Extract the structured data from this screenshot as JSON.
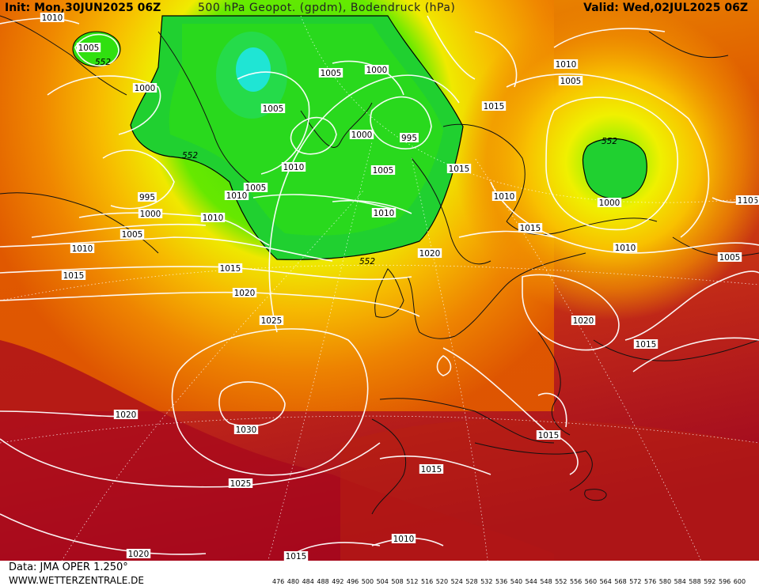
{
  "header": {
    "init": "Init: Mon,30JUN2025 06Z",
    "title": "500 hPa Geopot. (gpdm), Bodendruck (hPa)",
    "valid": "Valid: Wed,02JUL2025 06Z"
  },
  "footer": {
    "data_source": "Data: JMA OPER 1.250°",
    "website": "WWW.WETTERZENTRALE.DE"
  },
  "color_scale": {
    "values": [
      "476",
      "480",
      "484",
      "488",
      "492",
      "496",
      "500",
      "504",
      "508",
      "512",
      "516",
      "520",
      "524",
      "528",
      "532",
      "536",
      "540",
      "544",
      "548",
      "552",
      "556",
      "560",
      "564",
      "568",
      "572",
      "576",
      "580",
      "584",
      "588",
      "592",
      "596",
      "600"
    ],
    "colors": [
      "#3c0050",
      "#5a0a78",
      "#7a0aa0",
      "#9a10c0",
      "#c010e0",
      "#e020f0",
      "#a030f0",
      "#7040f0",
      "#4040f0",
      "#2060f0",
      "#2090f0",
      "#20b8f0",
      "#20e0f0",
      "#20e8c0",
      "#20e090",
      "#20d860",
      "#20d030",
      "#30e010",
      "#60f000",
      "#f0f000",
      "#f0e000",
      "#f8d000",
      "#f8b800",
      "#f0a000",
      "#f08800",
      "#e87000",
      "#e05800",
      "#d04000",
      "#c02800",
      "#b01818",
      "#a00820",
      "#c00060"
    ]
  },
  "pressure_labels": [
    {
      "text": "1010"
    },
    {
      "text": "1005"
    },
    {
      "text": "552"
    },
    {
      "text": "1000"
    },
    {
      "text": "552"
    },
    {
      "text": "995"
    },
    {
      "text": "1000"
    },
    {
      "text": "1005"
    },
    {
      "text": "1010"
    },
    {
      "text": "1015"
    },
    {
      "text": "1010"
    },
    {
      "text": "1005"
    },
    {
      "text": "1005"
    },
    {
      "text": "1000"
    },
    {
      "text": "1005"
    },
    {
      "text": "1010"
    },
    {
      "text": "1000"
    },
    {
      "text": "995"
    },
    {
      "text": "1005"
    },
    {
      "text": "1010"
    },
    {
      "text": "1010"
    },
    {
      "text": "1015"
    },
    {
      "text": "1020"
    },
    {
      "text": "552"
    },
    {
      "text": "1015"
    },
    {
      "text": "1020"
    },
    {
      "text": "1025"
    },
    {
      "text": "1030"
    },
    {
      "text": "1020"
    },
    {
      "text": "1025"
    },
    {
      "text": "1020"
    },
    {
      "text": "1015"
    },
    {
      "text": "1015"
    },
    {
      "text": "1010"
    },
    {
      "text": "1010"
    },
    {
      "text": "1005"
    },
    {
      "text": "1015"
    },
    {
      "text": "1010"
    },
    {
      "text": "552"
    },
    {
      "text": "1000"
    },
    {
      "text": "1010"
    },
    {
      "text": "1015"
    },
    {
      "text": "1005"
    },
    {
      "text": "1020"
    },
    {
      "text": "1015"
    },
    {
      "text": "1015"
    },
    {
      "text": "1015"
    },
    {
      "text": "10"
    }
  ]
}
